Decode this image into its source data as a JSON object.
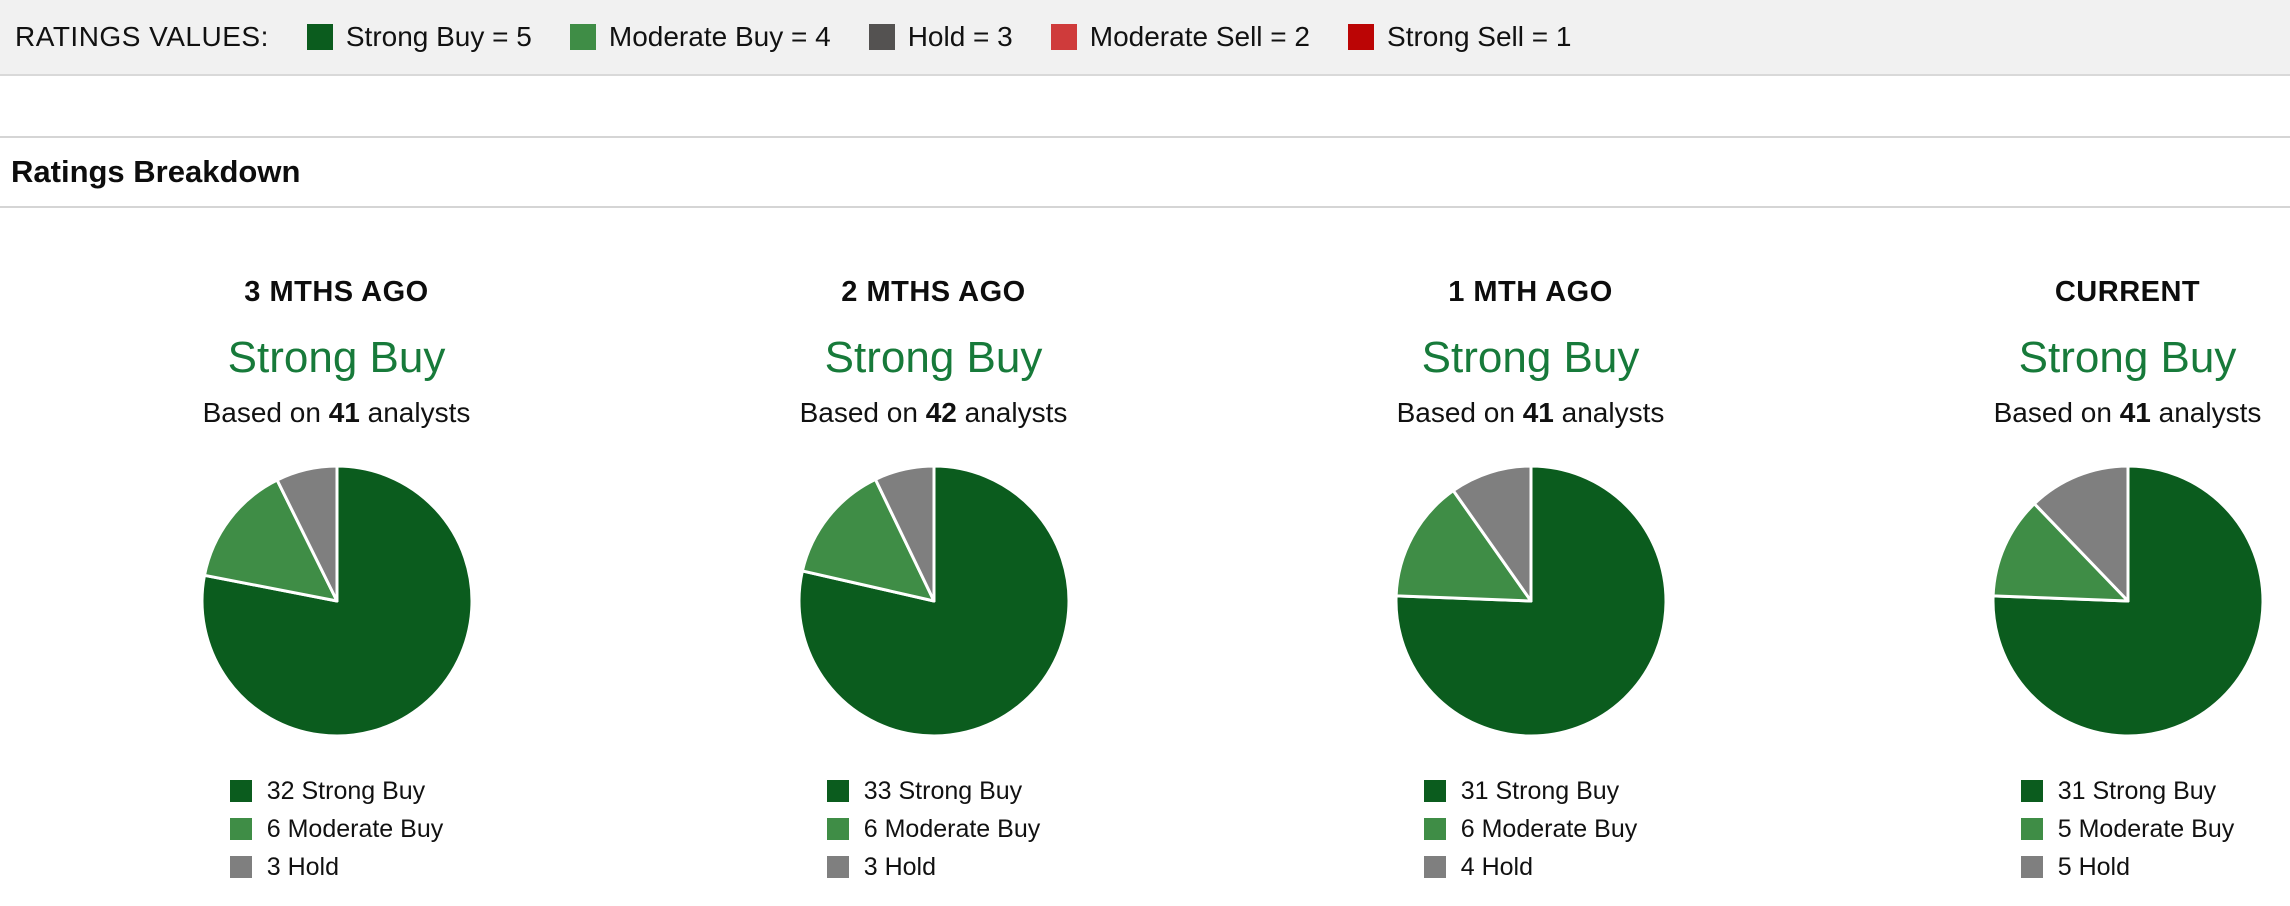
{
  "ratings_values_bar": {
    "label": "RATINGS VALUES:",
    "items": [
      {
        "name": "strong-buy",
        "label": "Strong Buy = 5",
        "color": "#0b5c1e"
      },
      {
        "name": "moderate-buy",
        "label": "Moderate Buy = 4",
        "color": "#3f8d46"
      },
      {
        "name": "hold",
        "label": "Hold = 3",
        "color": "#545251"
      },
      {
        "name": "moderate-sell",
        "label": "Moderate Sell = 2",
        "color": "#cf3b3b"
      },
      {
        "name": "strong-sell",
        "label": "Strong Sell = 1",
        "color": "#bb0505"
      }
    ]
  },
  "section": {
    "title": "Ratings Breakdown"
  },
  "colors": {
    "consensus_text": "#177a3a",
    "pie_slice_border": "#ffffff"
  },
  "chart_data": [
    {
      "type": "pie",
      "title": "3 MTHS AGO",
      "consensus": "Strong Buy",
      "based_on": {
        "prefix": "Based on",
        "count": 41,
        "suffix": "analysts"
      },
      "slices": [
        {
          "label": "Strong Buy",
          "value": 32,
          "color": "#0b5c1e",
          "legend_label": "32 Strong Buy"
        },
        {
          "label": "Moderate Buy",
          "value": 6,
          "color": "#3f8d46",
          "legend_label": "6 Moderate Buy"
        },
        {
          "label": "Hold",
          "value": 3,
          "color": "#7f7f7f",
          "legend_label": "3 Hold"
        }
      ],
      "legend_position": "bottom",
      "start_angle_deg": 0,
      "direction": "clockwise"
    },
    {
      "type": "pie",
      "title": "2 MTHS AGO",
      "consensus": "Strong Buy",
      "based_on": {
        "prefix": "Based on",
        "count": 42,
        "suffix": "analysts"
      },
      "slices": [
        {
          "label": "Strong Buy",
          "value": 33,
          "color": "#0b5c1e",
          "legend_label": "33 Strong Buy"
        },
        {
          "label": "Moderate Buy",
          "value": 6,
          "color": "#3f8d46",
          "legend_label": "6 Moderate Buy"
        },
        {
          "label": "Hold",
          "value": 3,
          "color": "#7f7f7f",
          "legend_label": "3 Hold"
        }
      ],
      "legend_position": "bottom",
      "start_angle_deg": 0,
      "direction": "clockwise"
    },
    {
      "type": "pie",
      "title": "1 MTH AGO",
      "consensus": "Strong Buy",
      "based_on": {
        "prefix": "Based on",
        "count": 41,
        "suffix": "analysts"
      },
      "slices": [
        {
          "label": "Strong Buy",
          "value": 31,
          "color": "#0b5c1e",
          "legend_label": "31 Strong Buy"
        },
        {
          "label": "Moderate Buy",
          "value": 6,
          "color": "#3f8d46",
          "legend_label": "6 Moderate Buy"
        },
        {
          "label": "Hold",
          "value": 4,
          "color": "#7f7f7f",
          "legend_label": "4 Hold"
        }
      ],
      "legend_position": "bottom",
      "start_angle_deg": 0,
      "direction": "clockwise"
    },
    {
      "type": "pie",
      "title": "CURRENT",
      "consensus": "Strong Buy",
      "based_on": {
        "prefix": "Based on",
        "count": 41,
        "suffix": "analysts"
      },
      "slices": [
        {
          "label": "Strong Buy",
          "value": 31,
          "color": "#0b5c1e",
          "legend_label": "31 Strong Buy"
        },
        {
          "label": "Moderate Buy",
          "value": 5,
          "color": "#3f8d46",
          "legend_label": "5 Moderate Buy"
        },
        {
          "label": "Hold",
          "value": 5,
          "color": "#7f7f7f",
          "legend_label": "5 Hold"
        }
      ],
      "legend_position": "bottom",
      "start_angle_deg": 0,
      "direction": "clockwise"
    }
  ]
}
